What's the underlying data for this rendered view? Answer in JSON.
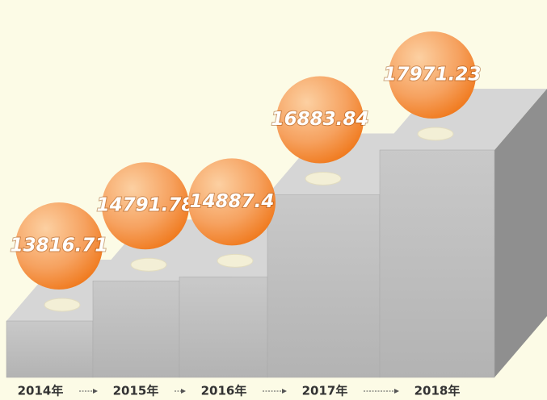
{
  "chart_data": {
    "type": "steps",
    "categories": [
      "2014年",
      "2015年",
      "2016年",
      "2017年",
      "2018年"
    ],
    "values": [
      13816.71,
      14791.78,
      14887.4,
      16883.84,
      17971.23
    ],
    "color": "#f58a32"
  }
}
